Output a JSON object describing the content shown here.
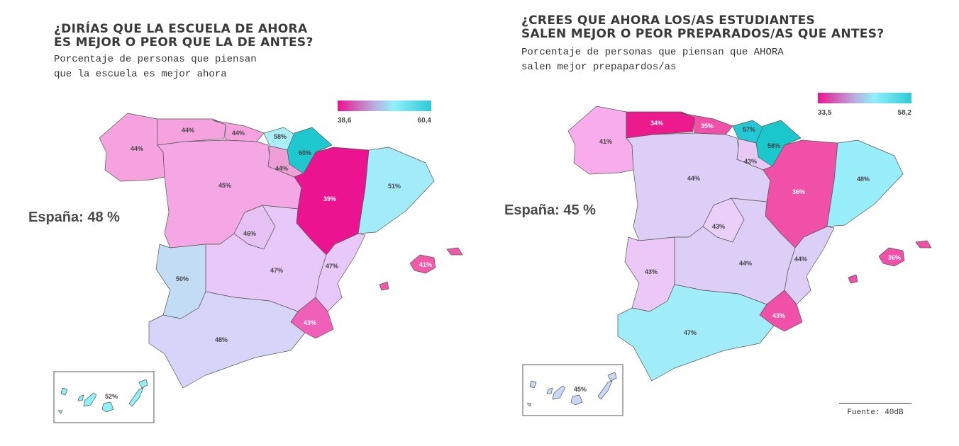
{
  "maps": [
    {
      "title": "¿DIRÍAS QUE LA ESCUELA DE AHORA\nES MEJOR O PEOR QUE LA DE ANTES?",
      "subtitle": "Porcentaje de personas que piensan\nque la escuela es mejor ahora",
      "legend": {
        "min": "38,6",
        "max": "60,4"
      },
      "spain_label": "España: 48 %",
      "regions": {
        "galicia": {
          "value": "44%",
          "color": "#f5a2de"
        },
        "asturias": {
          "value": "44%",
          "color": "#f5a2de"
        },
        "cantabria": {
          "value": "44%",
          "color": "#f5a2de"
        },
        "pais-vasco": {
          "value": "58%",
          "color": "#aaeef8"
        },
        "navarra": {
          "value": "60%",
          "color": "#1fc7cf"
        },
        "la-rioja": {
          "value": "44%",
          "color": "#ee9fd6"
        },
        "aragon": {
          "value": "39%",
          "color": "#ec1390"
        },
        "cataluna": {
          "value": "51%",
          "color": "#a2ecfa"
        },
        "castilla-y-leon": {
          "value": "45%",
          "color": "#f5a6e4"
        },
        "madrid": {
          "value": "46%",
          "color": "#e6c2f4"
        },
        "castilla-la-mancha": {
          "value": "47%",
          "color": "#e8c8f8"
        },
        "extremadura": {
          "value": "50%",
          "color": "#c2dcf6"
        },
        "valencia": {
          "value": "47%",
          "color": "#e8c8f8"
        },
        "murcia": {
          "value": "43%",
          "color": "#f060b8"
        },
        "andalucia": {
          "value": "48%",
          "color": "#d6d4f8"
        },
        "baleares": {
          "value": "41%",
          "color": "#f05aa8"
        },
        "canarias": {
          "value": "52%",
          "color": "#90f0f8"
        }
      }
    },
    {
      "title": "¿CREES QUE AHORA LOS/AS ESTUDIANTES\nSALEN MEJOR O PEOR PREPARADOS/AS QUE ANTES?",
      "subtitle": "Porcentaje de personas que piensan que AHORA\nsalen mejor prepapardos/as",
      "legend": {
        "min": "33,5",
        "max": "58,2"
      },
      "spain_label": "España: 45 %",
      "regions": {
        "galicia": {
          "value": "41%",
          "color": "#f8acec"
        },
        "asturias": {
          "value": "34%",
          "color": "#ec1a8c"
        },
        "cantabria": {
          "value": "35%",
          "color": "#f050a8"
        },
        "pais-vasco": {
          "value": "57%",
          "color": "#22c8d4"
        },
        "navarra": {
          "value": "58%",
          "color": "#1ac8cc"
        },
        "la-rioja": {
          "value": "43%",
          "color": "#e8c8f4"
        },
        "aragon": {
          "value": "36%",
          "color": "#f050a8"
        },
        "cataluna": {
          "value": "48%",
          "color": "#98eefa"
        },
        "castilla-y-leon": {
          "value": "44%",
          "color": "#dccef6"
        },
        "madrid": {
          "value": "43%",
          "color": "#ead0f8"
        },
        "castilla-la-mancha": {
          "value": "44%",
          "color": "#dccef6"
        },
        "extremadura": {
          "value": "43%",
          "color": "#ecc8f8"
        },
        "valencia": {
          "value": "44%",
          "color": "#dccef6"
        },
        "murcia": {
          "value": "43%",
          "color": "#f050a8"
        },
        "andalucia": {
          "value": "47%",
          "color": "#a0ecf8"
        },
        "baleares": {
          "value": "36%",
          "color": "#f050a8"
        },
        "canarias": {
          "value": "45%",
          "color": "#c8d8f8"
        }
      }
    }
  ],
  "source": "Fuente: 40dB"
}
